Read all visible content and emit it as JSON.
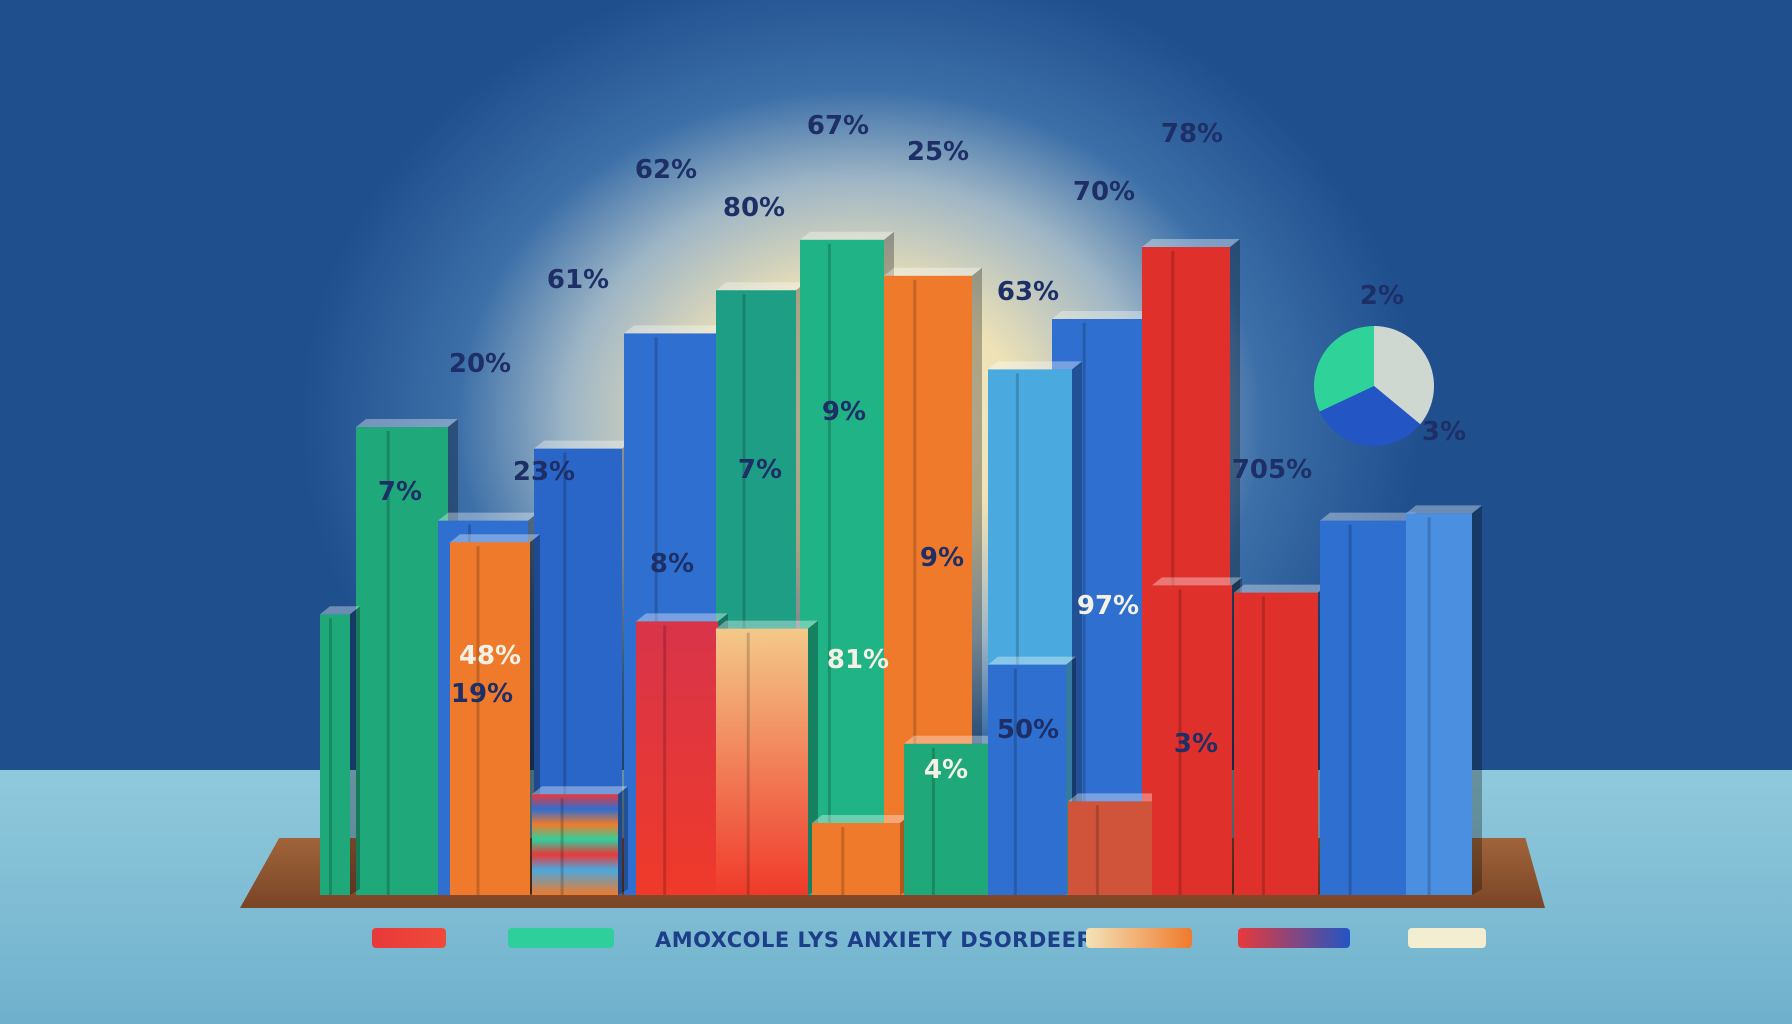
{
  "chart_data": {
    "type": "bar",
    "title": "",
    "legend_title": "AMOXCOLE LYS ANXIETY DSORDEERS",
    "legend_placement": "bottom",
    "data_labels": [
      "7%",
      "20%",
      "61%",
      "62%",
      "80%",
      "67%",
      "25%",
      "70%",
      "78%",
      "63%",
      "23%",
      "48%",
      "19%",
      "8%",
      "7%",
      "9%",
      "81%",
      "9%",
      "4%",
      "50%",
      "97%",
      "3%",
      "705%",
      "2%",
      "3%"
    ],
    "series": [
      {
        "values": [
          65,
          52,
          62,
          78,
          84,
          91,
          86,
          80,
          90,
          73
        ]
      },
      {
        "values": [
          49,
          14,
          38,
          37,
          10,
          21,
          32,
          13,
          43,
          42
        ]
      }
    ],
    "pie": {
      "labels": [
        "2%",
        "3%"
      ],
      "colors": [
        "#2fd39a",
        "#2355c4",
        "#cfd8d0"
      ]
    },
    "legend_colors": [
      "#e8393a",
      "#2fcf9c",
      "#f09a40",
      "#d8344a",
      "#f3edd2"
    ],
    "palette": {
      "blue": "#2f6fd0",
      "green": "#1fa87a",
      "red": "#e0302c",
      "orange": "#f07a2c",
      "sky": "#4aa9de",
      "cream": "#f3edd2"
    }
  }
}
